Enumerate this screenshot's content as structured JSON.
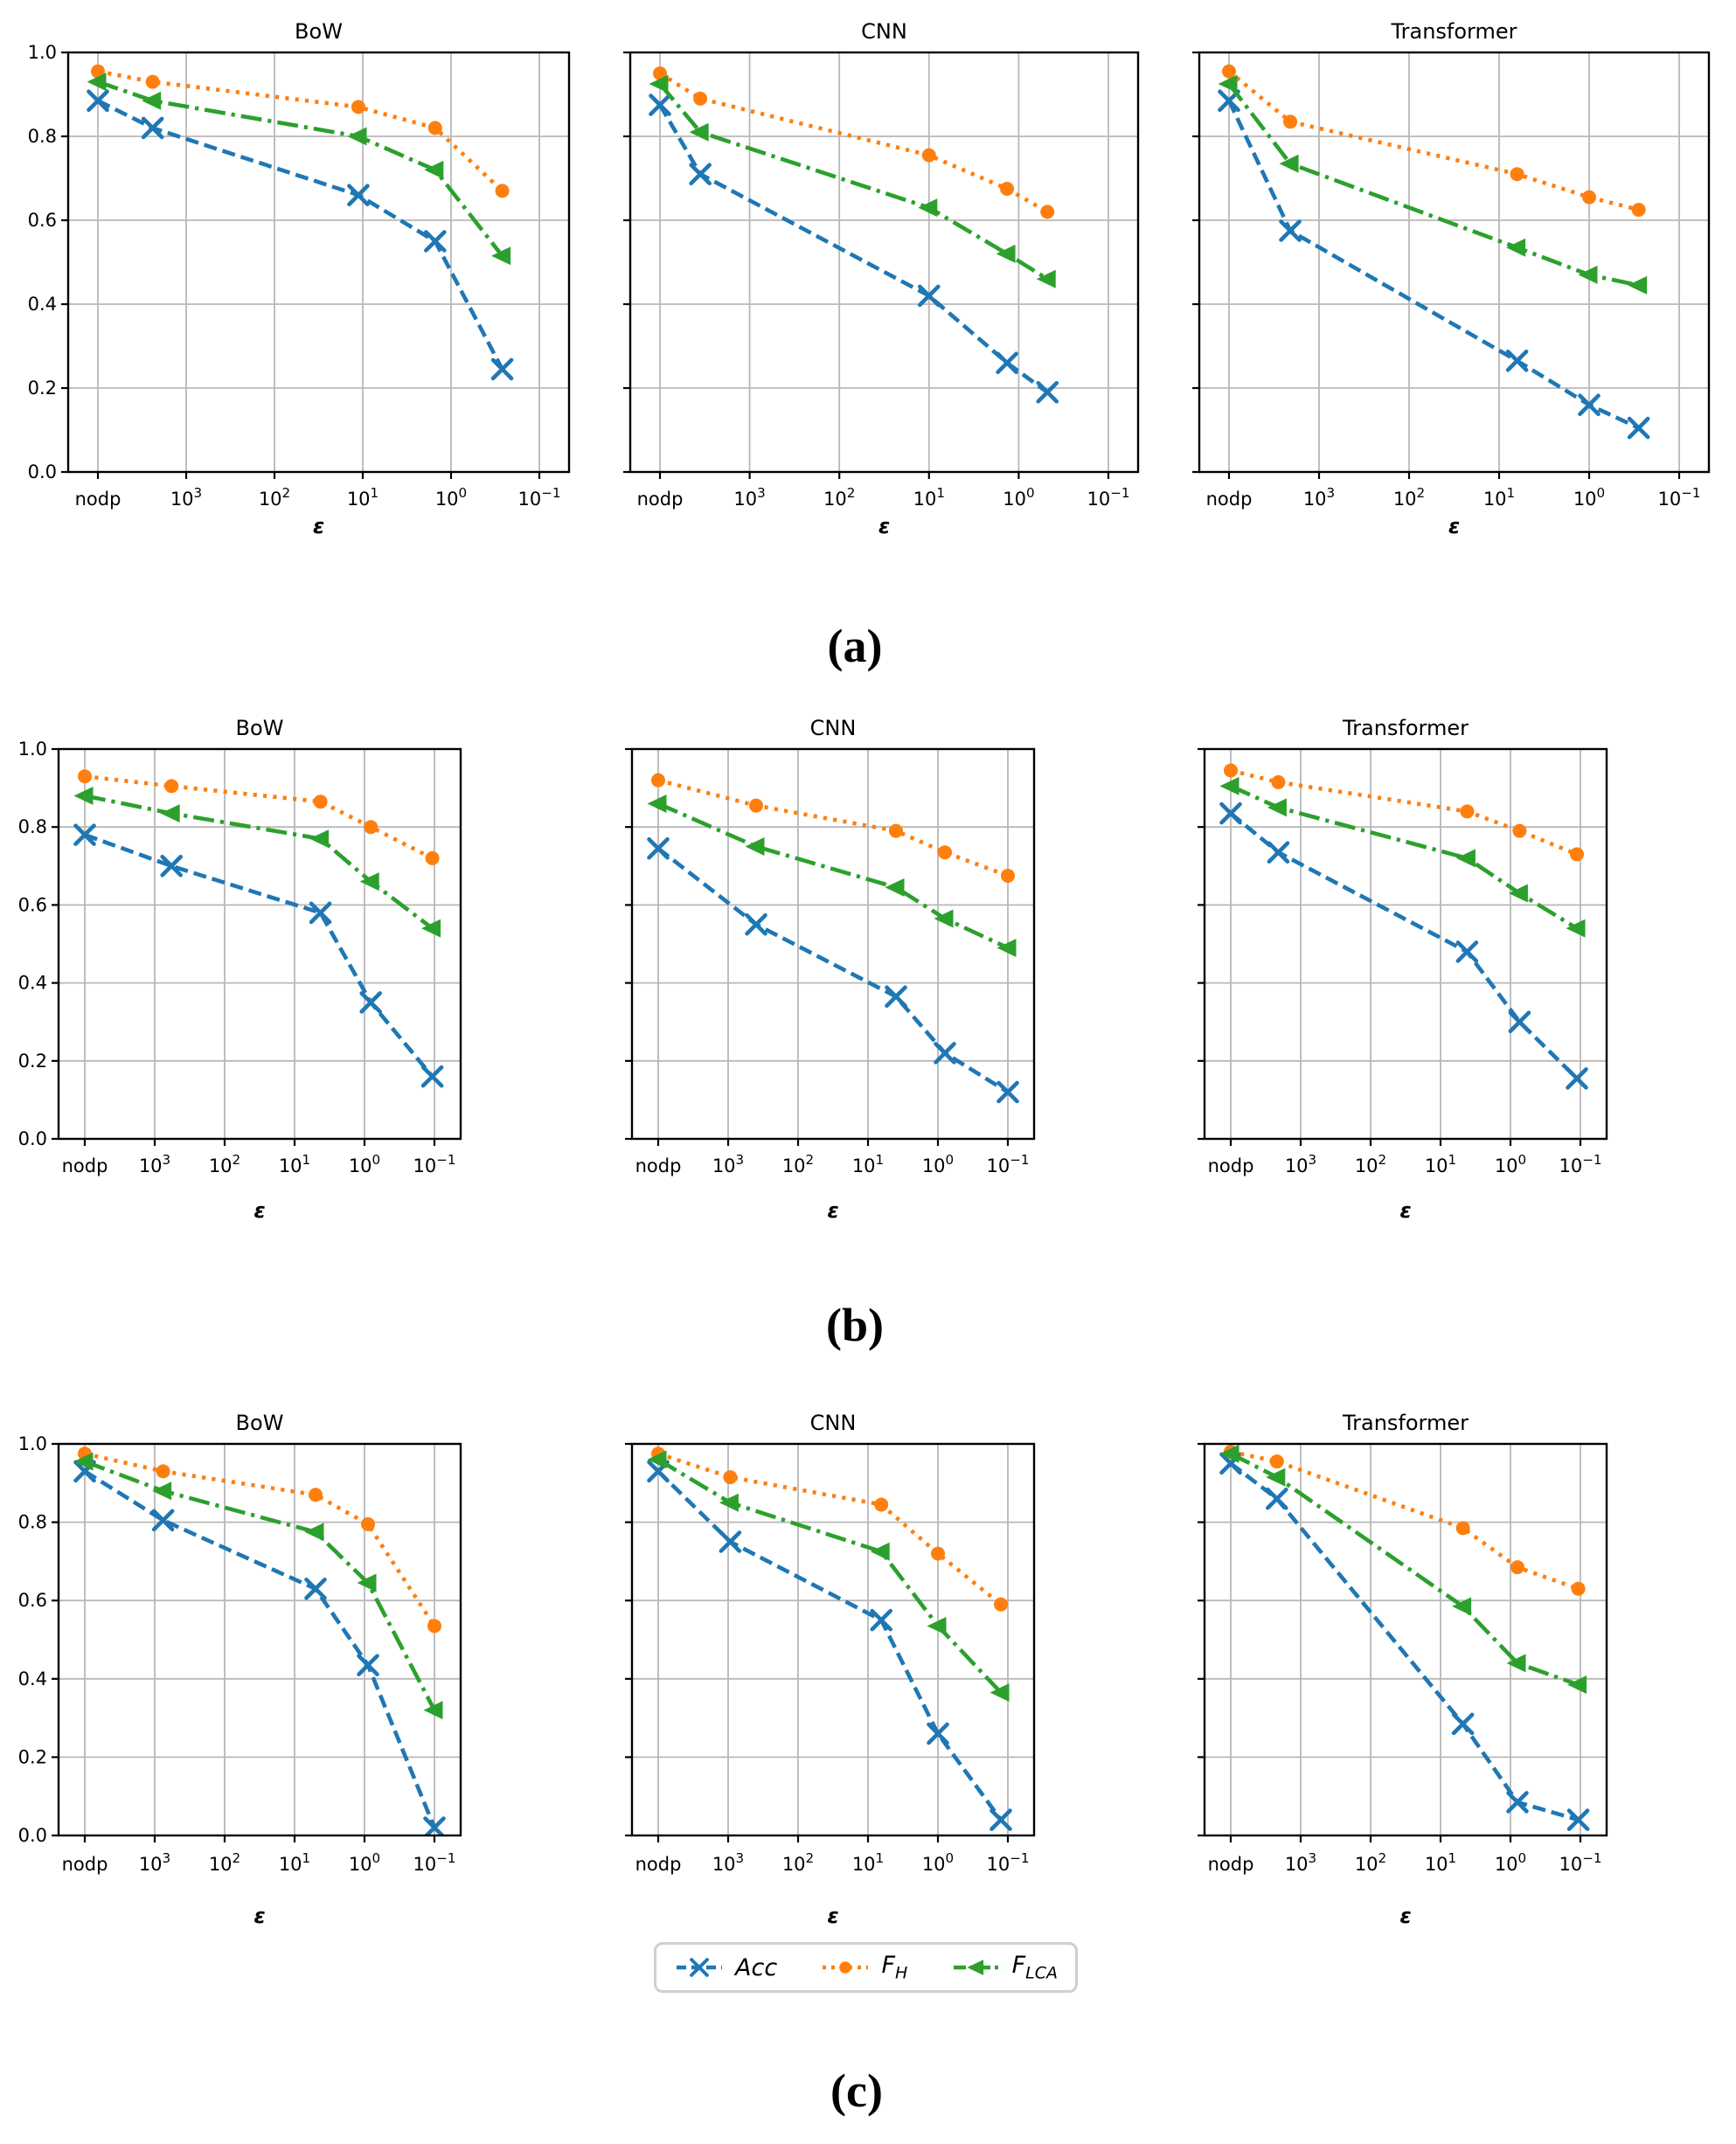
{
  "figure": {
    "background": "#ffffff",
    "captions": [
      "(a)",
      "(b)",
      "(c)"
    ],
    "legend": {
      "entries": [
        {
          "label": "Acc",
          "color": "#1f77b4",
          "linestyle": "dashed",
          "marker": "x",
          "icon": "dashed-line-x-marker-icon"
        },
        {
          "label": "F_H",
          "color": "#ff7f0e",
          "linestyle": "dotted",
          "marker": "circle",
          "icon": "dotted-line-circle-marker-icon"
        },
        {
          "label": "F_LCA",
          "color": "#2ca02c",
          "linestyle": "dashdot",
          "marker": "triangle-left",
          "icon": "dashdot-line-triangle-marker-icon"
        }
      ]
    },
    "colors": {
      "grid": "#b8b8b8",
      "spine": "#000000",
      "legend_border": "#cfcfcf"
    }
  },
  "chart_data": {
    "type": "line",
    "grid": true,
    "ylim": [
      0.0,
      1.0
    ],
    "y_ticks": [
      0.0,
      0.2,
      0.4,
      0.6,
      0.8,
      1.0
    ],
    "y_tick_labels": [
      "0.0",
      "0.2",
      "0.4",
      "0.6",
      "0.8",
      "1.0"
    ],
    "xlabel": "ε",
    "x_tick_labels": [
      "nodp",
      "10³",
      "10²",
      "10¹",
      "10⁰",
      "10⁻¹"
    ],
    "x_units_note": "x values are in tick units: 0=nodp, 1=10³, 2=10², 3=10¹, 4=10⁰, 5=10⁻¹ (log scale, decreasing ε)",
    "legend_entries": [
      "Acc",
      "F_H",
      "F_LCA"
    ],
    "legend_position": "bottom-center, below row (c) CNN panel",
    "series_styles": [
      {
        "name": "Acc",
        "color": "#1f77b4",
        "linestyle": "dashed",
        "marker": "x"
      },
      {
        "name": "F_H",
        "color": "#ff7f0e",
        "linestyle": "dotted",
        "marker": "circle"
      },
      {
        "name": "F_LCA",
        "color": "#2ca02c",
        "linestyle": "dashdot",
        "marker": "triangle-left"
      }
    ],
    "rows": [
      {
        "caption": "(a)",
        "panels": [
          {
            "title": "BoW",
            "x": [
              0,
              0.62,
              2.95,
              3.82,
              4.58
            ],
            "series": {
              "Acc": [
                0.885,
                0.82,
                0.66,
                0.55,
                0.245
              ],
              "F_H": [
                0.955,
                0.93,
                0.87,
                0.82,
                0.67
              ],
              "F_LCA": [
                0.93,
                0.885,
                0.8,
                0.72,
                0.515
              ]
            }
          },
          {
            "title": "CNN",
            "x": [
              0,
              0.45,
              3.0,
              3.87,
              4.32
            ],
            "series": {
              "Acc": [
                0.875,
                0.71,
                0.42,
                0.26,
                0.19
              ],
              "F_H": [
                0.95,
                0.89,
                0.755,
                0.675,
                0.62
              ],
              "F_LCA": [
                0.925,
                0.81,
                0.63,
                0.52,
                0.46
              ]
            }
          },
          {
            "title": "Transformer",
            "x": [
              0,
              0.68,
              3.2,
              4.0,
              4.55
            ],
            "series": {
              "Acc": [
                0.885,
                0.575,
                0.265,
                0.16,
                0.105
              ],
              "F_H": [
                0.955,
                0.835,
                0.71,
                0.655,
                0.625
              ],
              "F_LCA": [
                0.925,
                0.735,
                0.535,
                0.47,
                0.445
              ]
            }
          }
        ]
      },
      {
        "caption": "(b)",
        "panels": [
          {
            "title": "BoW",
            "x": [
              0,
              1.24,
              3.37,
              4.09,
              4.97
            ],
            "series": {
              "Acc": [
                0.78,
                0.7,
                0.58,
                0.35,
                0.16
              ],
              "F_H": [
                0.93,
                0.905,
                0.865,
                0.8,
                0.72
              ],
              "F_LCA": [
                0.88,
                0.835,
                0.77,
                0.66,
                0.54
              ]
            }
          },
          {
            "title": "CNN",
            "x": [
              0,
              1.4,
              3.4,
              4.1,
              5.0
            ],
            "series": {
              "Acc": [
                0.745,
                0.55,
                0.365,
                0.22,
                0.12
              ],
              "F_H": [
                0.92,
                0.855,
                0.79,
                0.735,
                0.675
              ],
              "F_LCA": [
                0.86,
                0.75,
                0.645,
                0.565,
                0.49
              ]
            }
          },
          {
            "title": "Transformer",
            "x": [
              0,
              0.68,
              3.38,
              4.13,
              4.95
            ],
            "series": {
              "Acc": [
                0.835,
                0.735,
                0.48,
                0.3,
                0.155
              ],
              "F_H": [
                0.945,
                0.915,
                0.84,
                0.79,
                0.73
              ],
              "F_LCA": [
                0.905,
                0.85,
                0.72,
                0.63,
                0.54
              ]
            }
          }
        ]
      },
      {
        "caption": "(c)",
        "panels": [
          {
            "title": "BoW",
            "x": [
              0,
              1.12,
              3.3,
              4.05,
              5.0
            ],
            "series": {
              "Acc": [
                0.93,
                0.805,
                0.63,
                0.435,
                0.02
              ],
              "F_H": [
                0.975,
                0.93,
                0.87,
                0.795,
                0.535
              ],
              "F_LCA": [
                0.955,
                0.88,
                0.775,
                0.645,
                0.32
              ]
            }
          },
          {
            "title": "CNN",
            "x": [
              0,
              1.03,
              3.19,
              4.0,
              4.9
            ],
            "series": {
              "Acc": [
                0.93,
                0.75,
                0.55,
                0.26,
                0.04
              ],
              "F_H": [
                0.975,
                0.915,
                0.845,
                0.72,
                0.59
              ],
              "F_LCA": [
                0.96,
                0.85,
                0.725,
                0.535,
                0.365
              ]
            }
          },
          {
            "title": "Transformer",
            "x": [
              0,
              0.66,
              3.32,
              4.1,
              4.97
            ],
            "series": {
              "Acc": [
                0.95,
                0.86,
                0.285,
                0.085,
                0.04
              ],
              "F_H": [
                0.98,
                0.955,
                0.785,
                0.685,
                0.63
              ],
              "F_LCA": [
                0.975,
                0.915,
                0.585,
                0.44,
                0.385
              ]
            }
          }
        ]
      }
    ]
  }
}
